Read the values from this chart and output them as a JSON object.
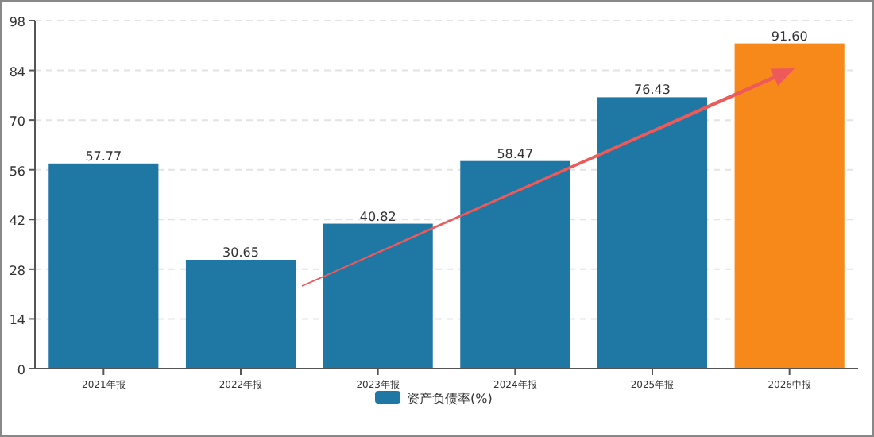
{
  "chart_data": {
    "type": "bar",
    "categories": [
      "2021年报",
      "2022年报",
      "2023年报",
      "2024年报",
      "2025年报",
      "2026中报"
    ],
    "series": [
      {
        "name": "资产负债率(%)",
        "color": "#1f77a4",
        "colors": [
          "#1f77a4",
          "#1f77a4",
          "#1f77a4",
          "#1f77a4",
          "#1f77a4",
          "#f7891b"
        ],
        "values": [
          57.77,
          30.65,
          40.82,
          58.47,
          76.43,
          91.6
        ],
        "value_labels": [
          "57.77",
          "30.65",
          "40.82",
          "58.47",
          "76.43",
          "91.60"
        ]
      }
    ],
    "ylim": [
      0,
      98
    ],
    "yticks": [
      0,
      14,
      28,
      42,
      56,
      70,
      84,
      98
    ],
    "grid": "y",
    "legend": "bottom"
  }
}
